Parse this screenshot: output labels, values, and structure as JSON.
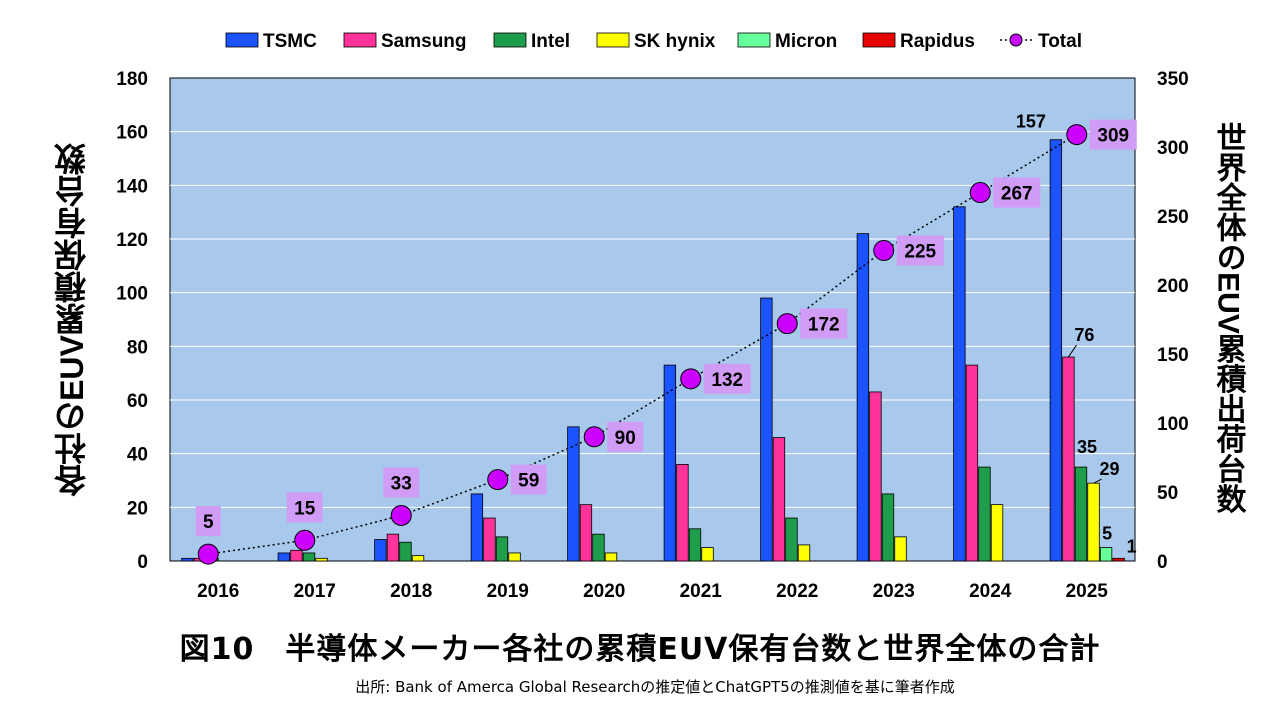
{
  "chart_data": {
    "type": "bar",
    "categories": [
      "2016",
      "2017",
      "2018",
      "2019",
      "2020",
      "2021",
      "2022",
      "2023",
      "2024",
      "2025"
    ],
    "series": [
      {
        "name": "TSMC",
        "color": "#1a53ff",
        "values": [
          1,
          3,
          8,
          25,
          50,
          73,
          98,
          122,
          132,
          157
        ]
      },
      {
        "name": "Samsung",
        "color": "#ff3399",
        "values": [
          1,
          4,
          10,
          16,
          21,
          36,
          46,
          63,
          73,
          76
        ]
      },
      {
        "name": "Intel",
        "color": "#1e9e4a",
        "values": [
          1,
          3,
          7,
          9,
          10,
          12,
          16,
          25,
          35,
          35
        ]
      },
      {
        "name": "SK hynix",
        "color": "#ffff00",
        "values": [
          0,
          1,
          2,
          3,
          3,
          5,
          6,
          9,
          21,
          29
        ]
      },
      {
        "name": "Micron",
        "color": "#66ff99",
        "values": [
          0,
          0,
          0,
          0,
          0,
          0,
          0,
          0,
          0,
          5
        ]
      },
      {
        "name": "Rapidus",
        "color": "#e60000",
        "values": [
          0,
          0,
          0,
          0,
          0,
          0,
          0,
          0,
          0,
          1
        ]
      }
    ],
    "total": {
      "name": "Total",
      "color": "#cc00ff",
      "values": [
        5,
        15,
        33,
        59,
        90,
        132,
        172,
        225,
        267,
        309
      ]
    },
    "bar_labels_2025": [
      "157",
      "76",
      "35",
      "29",
      "5",
      "1"
    ],
    "y_left": {
      "label": "各社のEUV累積保有台数",
      "range": [
        0,
        180
      ],
      "ticks": [
        "0",
        "20",
        "40",
        "60",
        "80",
        "100",
        "120",
        "140",
        "160",
        "180"
      ]
    },
    "y_right": {
      "label": "世界全体のEUV累積出荷台数",
      "range": [
        0,
        350
      ],
      "ticks": [
        "0",
        "50",
        "100",
        "150",
        "200",
        "250",
        "300",
        "350"
      ]
    },
    "legend": {
      "position": "top",
      "entries": [
        "TSMC",
        "Samsung",
        "Intel",
        "SK hynix",
        "Micron",
        "Rapidus",
        "Total"
      ]
    },
    "grid": true
  },
  "title": "図10　半導体メーカー各社の累積EUV保有台数と世界全体の合計",
  "source": "出所: Bank of Amerca Global Researchの推定値とChatGPT5の推測値を基に筆者作成"
}
